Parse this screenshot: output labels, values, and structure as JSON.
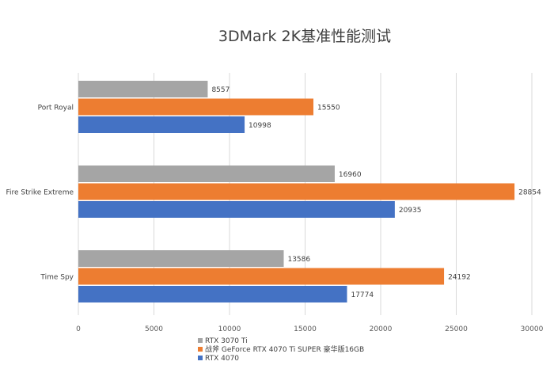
{
  "chart_data": {
    "type": "bar",
    "orientation": "horizontal",
    "title": "3DMark 2K基准性能测试",
    "categories": [
      "Port Royal",
      "Fire Strike Extreme",
      "Time Spy"
    ],
    "series": [
      {
        "name": "RTX 3070 Ti",
        "color": "#a5a5a5",
        "values": [
          8557,
          16960,
          13586
        ]
      },
      {
        "name": "战斧 GeForce RTX 4070 Ti SUPER 豪华版16GB",
        "color": "#ed7d31",
        "values": [
          15550,
          28854,
          24192
        ]
      },
      {
        "name": "RTX 4070",
        "color": "#4472c4",
        "values": [
          10998,
          20935,
          17774
        ]
      }
    ],
    "xlim": [
      0,
      30000
    ],
    "x_ticks": [
      "0",
      "5000",
      "10000",
      "15000",
      "20000",
      "25000",
      "30000"
    ],
    "grid": true,
    "legend_position": "bottom-left",
    "data_labels": true
  }
}
